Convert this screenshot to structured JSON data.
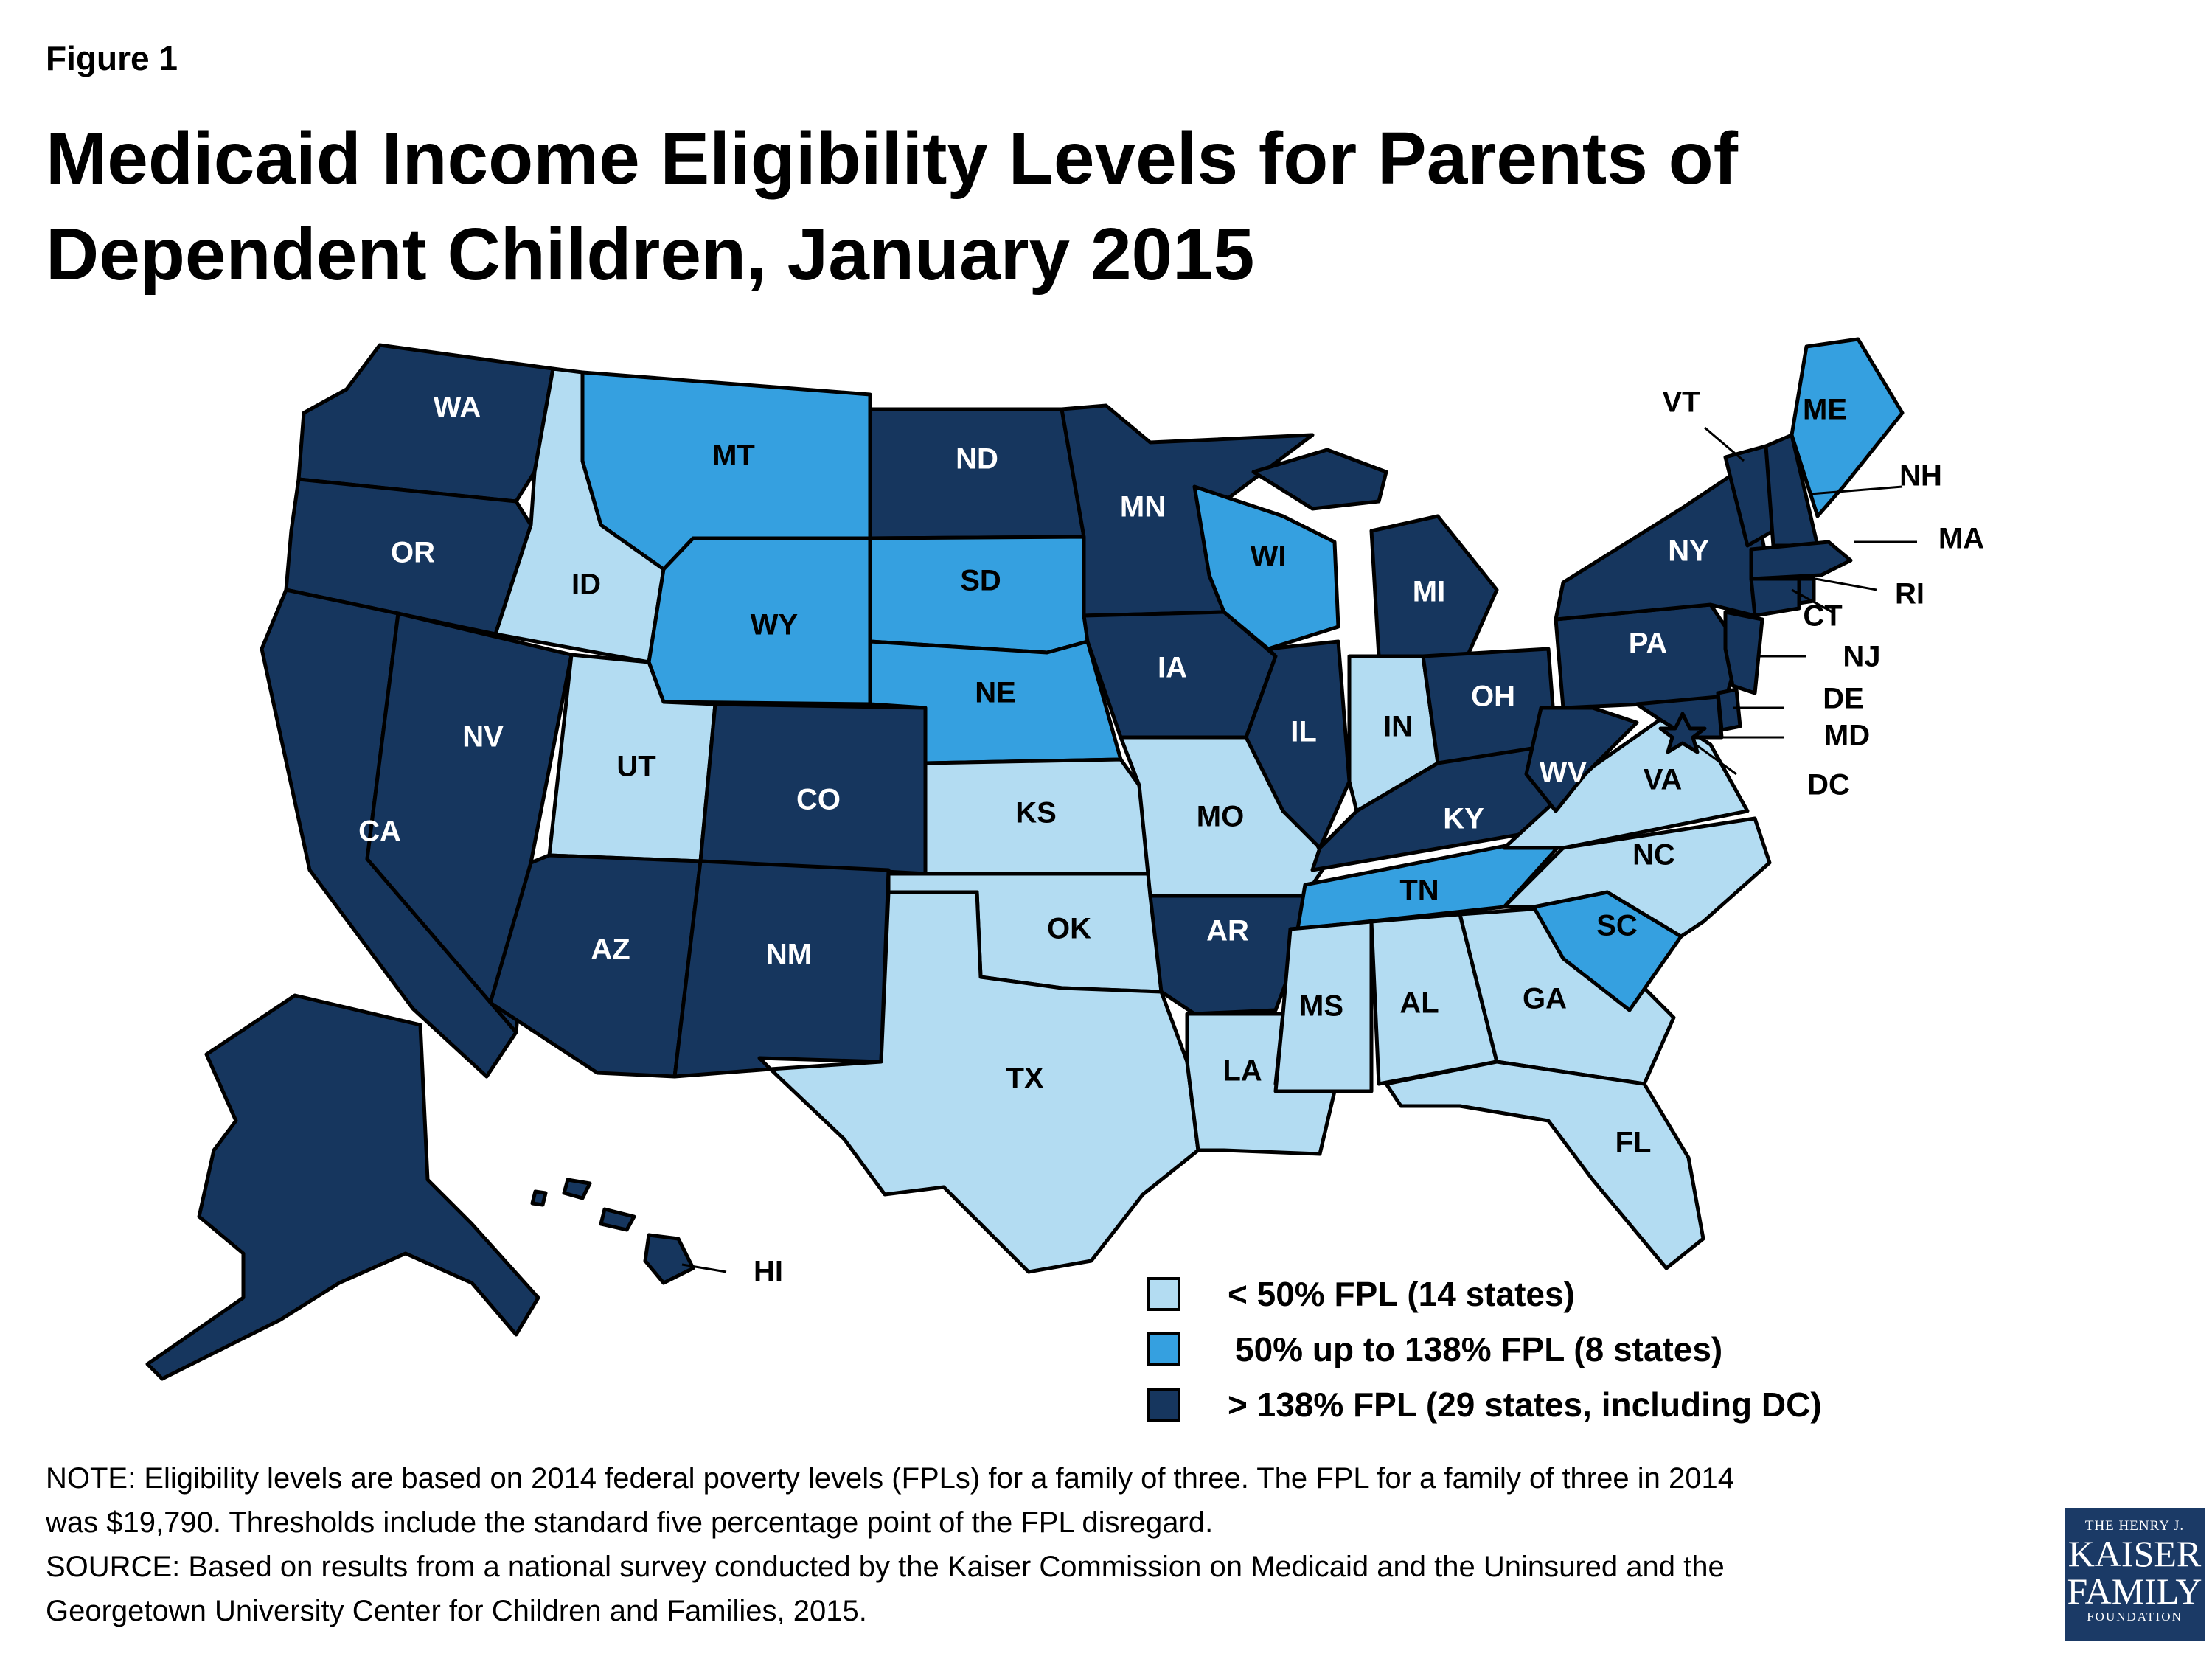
{
  "figure_label": "Figure 1",
  "title_line1": "Medicaid Income Eligibility Levels for Parents of",
  "title_line2": "Dependent Children, January 2015",
  "colors": {
    "low": "#b3dcf2",
    "mid": "#35a0e0",
    "high": "#16365e",
    "outline": "#000000"
  },
  "legend": [
    {
      "key": "low",
      "label": "< 50% FPL (14 states)"
    },
    {
      "key": "mid",
      "label": "50% up to 138% FPL (8 states)"
    },
    {
      "key": "high",
      "label": "> 138% FPL (29 states, including DC)"
    }
  ],
  "states": {
    "WA": "high",
    "OR": "high",
    "CA": "high",
    "NV": "high",
    "ID": "low",
    "MT": "mid",
    "WY": "mid",
    "UT": "low",
    "CO": "high",
    "AZ": "high",
    "NM": "high",
    "ND": "high",
    "SD": "mid",
    "NE": "mid",
    "KS": "low",
    "OK": "low",
    "TX": "low",
    "MN": "high",
    "IA": "high",
    "MO": "low",
    "AR": "high",
    "LA": "low",
    "WI": "mid",
    "IL": "high",
    "MI": "high",
    "IN": "low",
    "OH": "high",
    "KY": "high",
    "TN": "mid",
    "MS": "low",
    "AL": "low",
    "GA": "low",
    "FL": "low",
    "SC": "mid",
    "NC": "low",
    "VA": "low",
    "WV": "high",
    "PA": "high",
    "NY": "high",
    "VT": "high",
    "NH": "high",
    "ME": "mid",
    "MA": "high",
    "RI": "high",
    "CT": "high",
    "NJ": "high",
    "DE": "high",
    "MD": "high",
    "DC": "high",
    "AK": "high",
    "HI": "high"
  },
  "notes": {
    "line1": "NOTE: Eligibility levels are based on 2014 federal poverty levels (FPLs) for a family of three. The FPL for a family of three in 2014",
    "line2": "was $19,790. Thresholds include the standard five percentage point of the FPL disregard.",
    "line3": "SOURCE: Based on results from a national survey conducted by the Kaiser Commission on Medicaid and the Uninsured and the",
    "line4": "Georgetown University Center for Children and Families, 2015."
  },
  "logo": {
    "line1": "THE HENRY J.",
    "line2": "KAISER",
    "line3": "FAMILY",
    "line4": "FOUNDATION"
  }
}
